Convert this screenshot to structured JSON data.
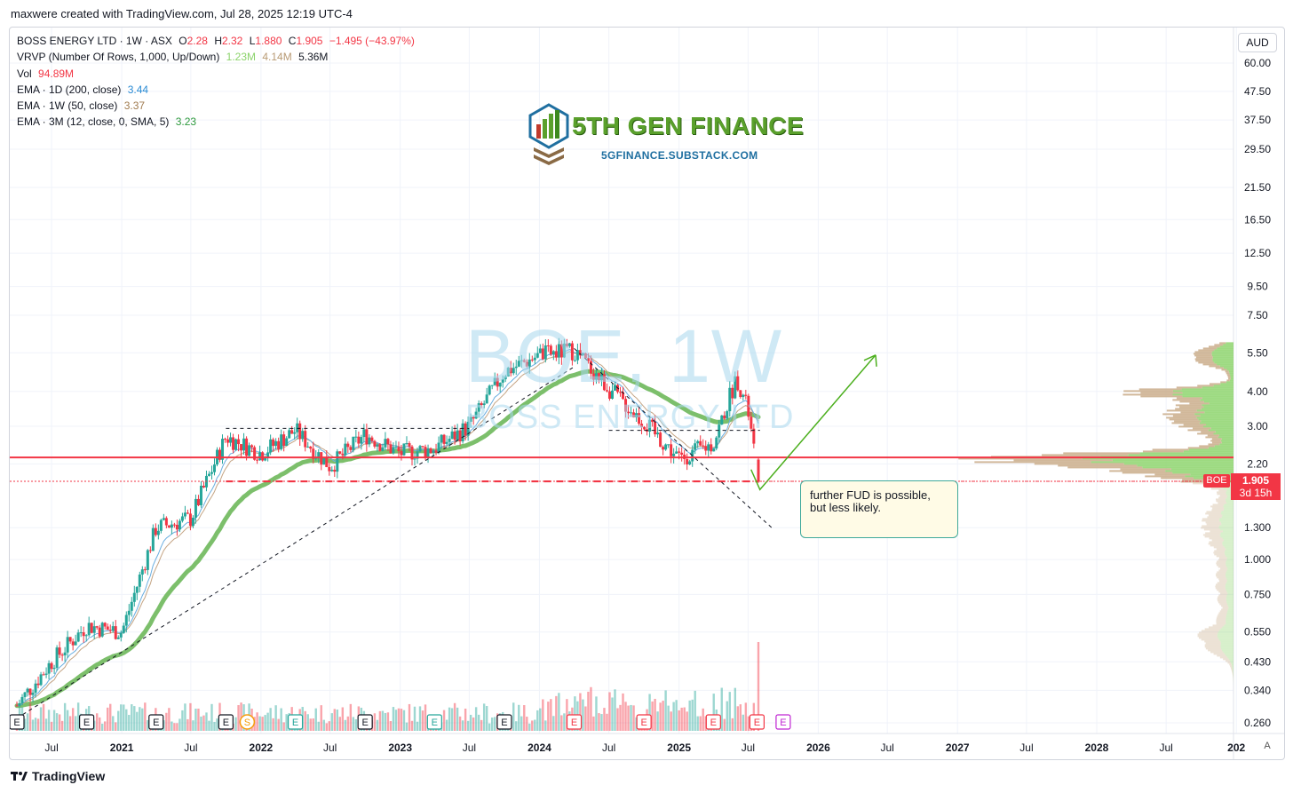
{
  "caption": "maxwere created with TradingView.com, Jul 28, 2025 12:19 UTC-4",
  "legend": {
    "symbol": "BOSS ENERGY LTD · 1W · ASX",
    "o_label": "O",
    "o_val": "2.28",
    "h_label": "H",
    "h_val": "2.32",
    "l_label": "L",
    "l_val": "1.880",
    "c_label": "C",
    "c_val": "1.905",
    "change": "−1.495 (−43.97%)",
    "vrvp_label": "VRVP (Number Of Rows, 1,000, Up/Down)",
    "vrvp_v1": "1.23M",
    "vrvp_v2": "4.14M",
    "vrvp_v3": "5.36M",
    "vol_label": "Vol",
    "vol_val": "94.89M",
    "ema1_label": "EMA · 1D (200, close)",
    "ema1_val": "3.44",
    "ema2_label": "EMA · 1W (50, close)",
    "ema2_val": "3.37",
    "ema3_label": "EMA · 3M (12, close, 0, SMA, 5)",
    "ema3_val": "3.23"
  },
  "watermark": {
    "ticker": "BOE, 1W",
    "name": "BOSS ENERGY LTD"
  },
  "logo": {
    "title": "5TH GEN FINANCE",
    "subtitle": "5GFINANCE.SUBSTACK.COM"
  },
  "currency_button": "AUD",
  "auto_button": "A",
  "annotation": "further FUD is possible, but less likely.",
  "price_tag": {
    "symbol": "BOE",
    "price": "1.905",
    "countdown": "3d 15h"
  },
  "footer": {
    "brand": "TradingView"
  },
  "colors": {
    "up": "#26a69a",
    "down": "#f23645",
    "ema_long": "#7cbf6b",
    "ema_1w": "#c4a484",
    "ema_1d": "#6aaee0",
    "vp_up": "#8cd36b",
    "vp_down": "#c9ab88"
  },
  "chart_data": {
    "type": "candlestick",
    "y_scale": "log",
    "y_ticks": [
      "60.00",
      "47.50",
      "37.50",
      "29.50",
      "21.50",
      "16.50",
      "12.50",
      "9.50",
      "7.50",
      "5.50",
      "4.00",
      "3.00",
      "2.20",
      "1.300",
      "1.000",
      "0.750",
      "0.550",
      "0.430",
      "0.340",
      "0.260"
    ],
    "x_ticks": [
      {
        "label": "Jul",
        "bold": false
      },
      {
        "label": "2021",
        "bold": true
      },
      {
        "label": "Jul",
        "bold": false
      },
      {
        "label": "2022",
        "bold": true
      },
      {
        "label": "Jul",
        "bold": false
      },
      {
        "label": "2023",
        "bold": true
      },
      {
        "label": "Jul",
        "bold": false
      },
      {
        "label": "2024",
        "bold": true
      },
      {
        "label": "Jul",
        "bold": false
      },
      {
        "label": "2025",
        "bold": true
      },
      {
        "label": "Jul",
        "bold": false
      },
      {
        "label": "2026",
        "bold": true
      },
      {
        "label": "Jul",
        "bold": false
      },
      {
        "label": "2027",
        "bold": true
      },
      {
        "label": "Jul",
        "bold": false
      },
      {
        "label": "2028",
        "bold": true
      },
      {
        "label": "Jul",
        "bold": false
      },
      {
        "label": "202",
        "bold": true
      }
    ],
    "last": {
      "open": 2.28,
      "high": 2.32,
      "low": 1.88,
      "close": 1.905,
      "change": -1.495,
      "change_pct": -43.97
    },
    "ema": {
      "ema_1d_200": 3.44,
      "ema_1w_50": 3.37,
      "ema_3m_12": 3.23
    },
    "horizontal_levels": [
      {
        "price": 2.32,
        "style": "solid",
        "color": "#f23645"
      },
      {
        "price": 1.905,
        "style": "dashed",
        "color": "#f23645"
      }
    ],
    "price_path_keypoints": [
      {
        "date": "2020-04",
        "price": 0.3
      },
      {
        "date": "2020-07",
        "price": 0.43
      },
      {
        "date": "2020-10",
        "price": 0.58
      },
      {
        "date": "2021-01",
        "price": 0.55
      },
      {
        "date": "2021-04",
        "price": 1.3
      },
      {
        "date": "2021-07",
        "price": 1.4
      },
      {
        "date": "2021-10",
        "price": 2.75
      },
      {
        "date": "2022-01",
        "price": 2.4
      },
      {
        "date": "2022-04",
        "price": 2.9
      },
      {
        "date": "2022-07",
        "price": 2.15
      },
      {
        "date": "2022-10",
        "price": 2.8
      },
      {
        "date": "2023-01",
        "price": 2.4
      },
      {
        "date": "2023-04",
        "price": 2.5
      },
      {
        "date": "2023-07",
        "price": 3.0
      },
      {
        "date": "2023-10",
        "price": 4.7
      },
      {
        "date": "2024-01",
        "price": 5.4
      },
      {
        "date": "2024-04",
        "price": 5.6
      },
      {
        "date": "2024-07",
        "price": 4.1
      },
      {
        "date": "2024-10",
        "price": 3.1
      },
      {
        "date": "2025-01",
        "price": 2.3
      },
      {
        "date": "2025-04",
        "price": 2.6
      },
      {
        "date": "2025-06",
        "price": 4.5
      },
      {
        "date": "2025-07",
        "price": 3.4
      },
      {
        "date": "2025-07-28",
        "price": 1.905
      }
    ],
    "earnings_markers": [
      "E",
      "E",
      "E",
      "E",
      "S",
      "E",
      "E",
      "E",
      "E",
      "E",
      "E",
      "E",
      "E",
      "E"
    ],
    "legend_placement": "top-left"
  }
}
